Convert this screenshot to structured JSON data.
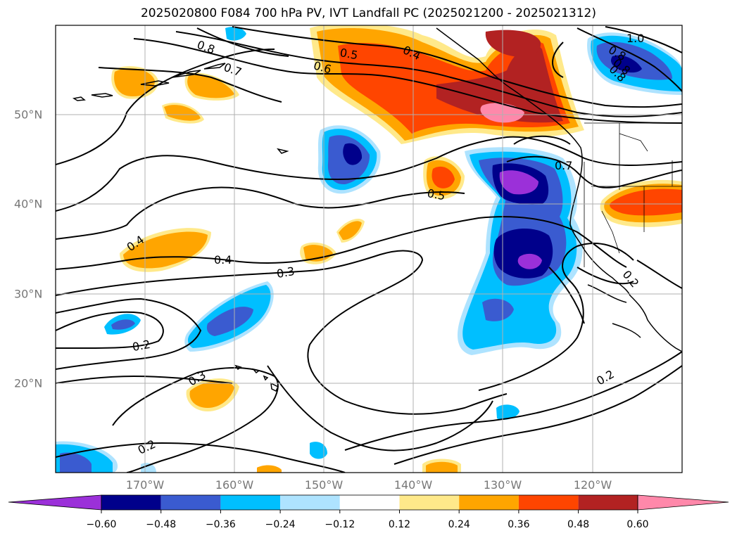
{
  "title": "2025020800 F084 700 hPa PV, IVT Landfall PC (2025021200 - 2025021312)",
  "lon_labels": [
    "170°W",
    "160°W",
    "150°W",
    "140°W",
    "130°W",
    "120°W"
  ],
  "lat_labels": [
    "50°N",
    "40°N",
    "30°N",
    "20°N"
  ],
  "contour_labels": [
    "1.0",
    "0.8",
    "0.8",
    "0.8",
    "0.7",
    "0.8",
    "0.6",
    "0.5",
    "0.4",
    "0.7",
    "0.5",
    "0.4",
    "0.4",
    "0.3",
    "0.2",
    "0.3",
    "0.2",
    "0.2",
    "0.2"
  ],
  "colorbar": {
    "tick_labels": [
      "−0.60",
      "−0.48",
      "−0.36",
      "−0.24",
      "−0.12",
      "0.12",
      "0.24",
      "0.36",
      "0.48",
      "0.60"
    ],
    "colors": [
      "#9b30d9",
      "#00008b",
      "#3a5bd0",
      "#00bfff",
      "#aee3ff",
      "#ffffff",
      "#ffe98a",
      "#ffa500",
      "#ff4500",
      "#b22222",
      "#ff88aa"
    ]
  }
}
